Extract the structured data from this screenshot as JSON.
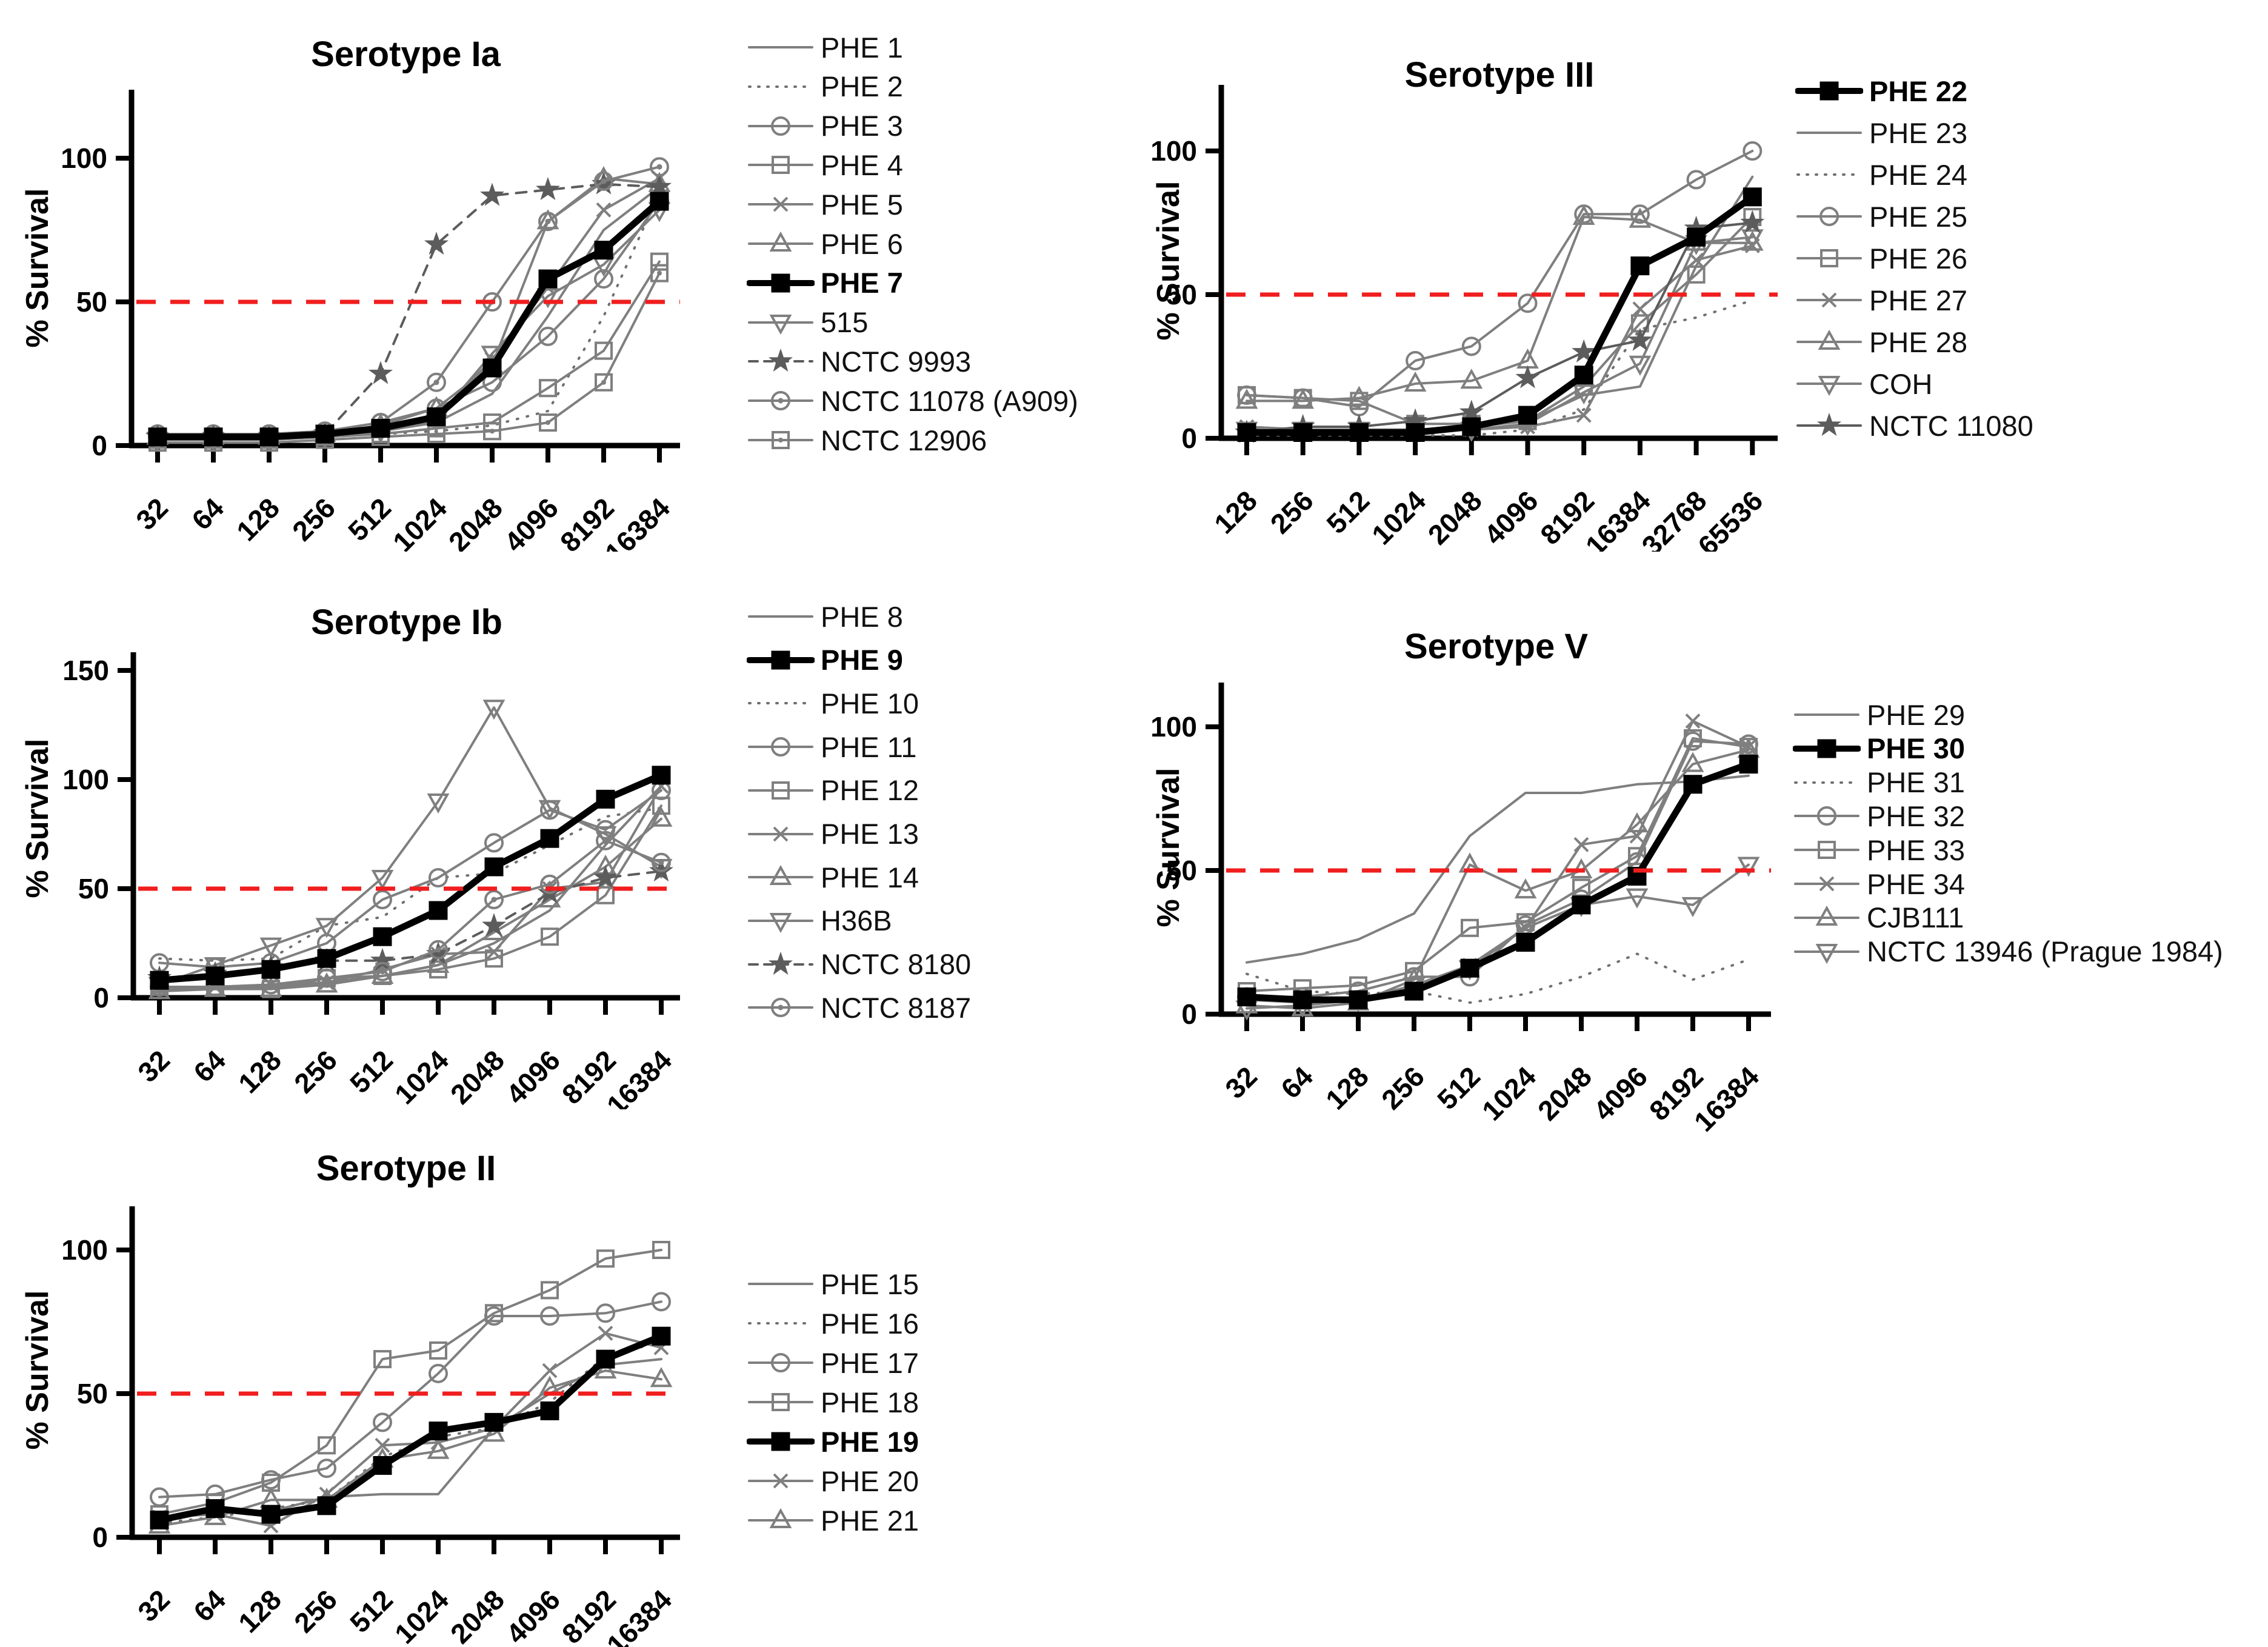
{
  "figure": {
    "background": "#ffffff",
    "threshold_label_note": "red dashed reference line at 50% survival on every panel",
    "colors": {
      "series_gray": "#7f7f7f",
      "dotted_gray": "#707070",
      "star_gray": "#5c5c5c",
      "bold_black": "#000000",
      "threshold_red": "#f01e1e"
    }
  },
  "chart_data": [
    {
      "type": "line",
      "title": "Serotype Ia",
      "ylabel": "% Survival",
      "xlabel": "",
      "categories": [
        "32",
        "64",
        "128",
        "256",
        "512",
        "1024",
        "2048",
        "4096",
        "8192",
        "16384"
      ],
      "yticks": [
        0,
        50,
        100
      ],
      "ylim": [
        0,
        125
      ],
      "threshold": 50,
      "grid": false,
      "legend_position": "right",
      "xtick_rotation": -45,
      "series": [
        {
          "label": "PHE 1",
          "marker": "none",
          "line": "solid",
          "bold": false,
          "values": [
            3,
            3,
            3,
            4,
            5,
            8,
            18,
            45,
            75,
            90
          ]
        },
        {
          "label": "PHE 2",
          "marker": "none",
          "line": "dotted",
          "bold": false,
          "values": [
            2,
            2,
            2,
            3,
            4,
            5,
            7,
            12,
            45,
            88
          ]
        },
        {
          "label": "PHE 3",
          "marker": "circle",
          "line": "solid",
          "bold": false,
          "values": [
            4,
            4,
            4,
            5,
            8,
            13,
            22,
            38,
            58,
            85
          ]
        },
        {
          "label": "PHE 4",
          "marker": "square",
          "line": "solid",
          "bold": false,
          "values": [
            2,
            2,
            2,
            3,
            4,
            6,
            8,
            20,
            33,
            64
          ]
        },
        {
          "label": "PHE 5",
          "marker": "x",
          "line": "solid",
          "bold": false,
          "values": [
            3,
            3,
            3,
            4,
            6,
            10,
            30,
            55,
            82,
            93
          ]
        },
        {
          "label": "PHE 6",
          "marker": "triangle-up",
          "line": "solid",
          "bold": false,
          "values": [
            3,
            3,
            3,
            4,
            7,
            13,
            28,
            78,
            93,
            91
          ]
        },
        {
          "label": "PHE 7",
          "marker": "filled-square",
          "line": "solid",
          "bold": true,
          "values": [
            3,
            3,
            3,
            4,
            6,
            10,
            27,
            58,
            68,
            85
          ]
        },
        {
          "label": "515",
          "marker": "triangle-down",
          "line": "solid",
          "bold": false,
          "values": [
            2,
            2,
            2,
            3,
            5,
            9,
            32,
            52,
            63,
            82
          ]
        },
        {
          "label": "NCTC 9993",
          "marker": "star",
          "line": "dashed",
          "bold": false,
          "values": [
            3,
            3,
            3,
            4,
            25,
            70,
            87,
            89,
            91,
            90
          ]
        },
        {
          "label": "NCTC 11078 (A909)",
          "marker": "circle-dot",
          "line": "solid",
          "bold": false,
          "values": [
            3,
            3,
            4,
            5,
            8,
            22,
            50,
            78,
            92,
            97
          ]
        },
        {
          "label": "NCTC 12906",
          "marker": "square-dot",
          "line": "solid",
          "bold": false,
          "values": [
            1,
            1,
            1,
            2,
            3,
            4,
            5,
            8,
            22,
            60
          ]
        }
      ]
    },
    {
      "type": "line",
      "title": "Serotype III",
      "ylabel": "% Survival",
      "xlabel": "",
      "categories": [
        "128",
        "256",
        "512",
        "1024",
        "2048",
        "4096",
        "8192",
        "16384",
        "32768",
        "65536"
      ],
      "yticks": [
        0,
        50,
        100
      ],
      "ylim": [
        0,
        123
      ],
      "threshold": 50,
      "grid": false,
      "legend_position": "right",
      "xtick_rotation": -45,
      "series": [
        {
          "label": "PHE 22",
          "marker": "filled-square",
          "line": "solid",
          "bold": true,
          "values": [
            2,
            2,
            2,
            2,
            4,
            8,
            22,
            60,
            70,
            84
          ]
        },
        {
          "label": "PHE 23",
          "marker": "none",
          "line": "solid",
          "bold": false,
          "values": [
            4,
            3,
            3,
            3,
            4,
            6,
            15,
            18,
            60,
            91
          ]
        },
        {
          "label": "PHE 24",
          "marker": "none",
          "line": "dotted",
          "bold": false,
          "values": [
            1,
            1,
            1,
            1,
            1,
            3,
            10,
            38,
            42,
            48
          ]
        },
        {
          "label": "PHE 25",
          "marker": "circle",
          "line": "solid",
          "bold": false,
          "values": [
            15,
            14,
            11,
            27,
            32,
            47,
            78,
            78,
            90,
            100
          ]
        },
        {
          "label": "PHE 26",
          "marker": "square",
          "line": "solid",
          "bold": false,
          "values": [
            15,
            14,
            13,
            5,
            5,
            6,
            18,
            40,
            57,
            77
          ]
        },
        {
          "label": "PHE 27",
          "marker": "x",
          "line": "solid",
          "bold": false,
          "values": [
            4,
            3,
            3,
            3,
            3,
            4,
            8,
            45,
            62,
            67
          ]
        },
        {
          "label": "PHE 28",
          "marker": "triangle-up",
          "line": "solid",
          "bold": false,
          "values": [
            13,
            13,
            14,
            19,
            20,
            27,
            77,
            76,
            68,
            68
          ]
        },
        {
          "label": "COH",
          "marker": "triangle-down",
          "line": "solid",
          "bold": false,
          "values": [
            3,
            3,
            3,
            3,
            3,
            5,
            16,
            26,
            68,
            70
          ]
        },
        {
          "label": "NCTC 11080",
          "marker": "star",
          "line": "solid",
          "bold": false,
          "values": [
            2,
            4,
            4,
            6,
            9,
            21,
            30,
            34,
            73,
            75
          ]
        }
      ]
    },
    {
      "type": "line",
      "title": "Serotype Ib",
      "ylabel": "% Survival",
      "xlabel": "",
      "categories": [
        "32",
        "64",
        "128",
        "256",
        "512",
        "1024",
        "2048",
        "4096",
        "8192",
        "16384"
      ],
      "yticks": [
        0,
        50,
        100,
        150
      ],
      "ylim": [
        0,
        158
      ],
      "threshold": 50,
      "grid": false,
      "legend_position": "right",
      "xtick_rotation": -45,
      "series": [
        {
          "label": "PHE 8",
          "marker": "none",
          "line": "solid",
          "bold": false,
          "values": [
            4,
            4,
            5,
            7,
            10,
            15,
            25,
            40,
            70,
            97
          ]
        },
        {
          "label": "PHE 9",
          "marker": "filled-square",
          "line": "solid",
          "bold": true,
          "values": [
            8,
            10,
            13,
            18,
            28,
            40,
            60,
            73,
            91,
            102
          ]
        },
        {
          "label": "PHE 10",
          "marker": "none",
          "line": "dotted",
          "bold": false,
          "values": [
            18,
            17,
            18,
            33,
            37,
            55,
            57,
            70,
            83,
            87
          ]
        },
        {
          "label": "PHE 11",
          "marker": "circle",
          "line": "solid",
          "bold": false,
          "values": [
            16,
            14,
            16,
            25,
            45,
            55,
            71,
            86,
            77,
            95
          ]
        },
        {
          "label": "PHE 12",
          "marker": "square",
          "line": "solid",
          "bold": false,
          "values": [
            5,
            5,
            4,
            9,
            10,
            13,
            18,
            28,
            47,
            88
          ]
        },
        {
          "label": "PHE 13",
          "marker": "x",
          "line": "solid",
          "bold": false,
          "values": [
            4,
            5,
            6,
            7,
            13,
            20,
            21,
            50,
            53,
            97
          ]
        },
        {
          "label": "PHE 14",
          "marker": "triangle-up",
          "line": "solid",
          "bold": false,
          "values": [
            3,
            4,
            4,
            6,
            10,
            15,
            30,
            45,
            60,
            82
          ]
        },
        {
          "label": "H36B",
          "marker": "triangle-down",
          "line": "solid",
          "bold": false,
          "values": [
            6,
            15,
            24,
            33,
            55,
            90,
            133,
            87,
            75,
            60
          ]
        },
        {
          "label": "NCTC 8180",
          "marker": "star",
          "line": "dashed",
          "bold": false,
          "values": [
            9,
            11,
            14,
            17,
            17,
            20,
            33,
            48,
            55,
            58
          ]
        },
        {
          "label": "NCTC 8187",
          "marker": "circle-dot",
          "line": "solid",
          "bold": false,
          "values": [
            5,
            5,
            6,
            9,
            12,
            22,
            45,
            52,
            72,
            62
          ]
        }
      ]
    },
    {
      "type": "line",
      "title": "Serotype V",
      "ylabel": "% Survival",
      "xlabel": "",
      "categories": [
        "32",
        "64",
        "128",
        "256",
        "512",
        "1024",
        "2048",
        "4096",
        "8192",
        "16384"
      ],
      "yticks": [
        0,
        50,
        100
      ],
      "ylim": [
        0,
        115
      ],
      "threshold": 50,
      "grid": false,
      "legend_position": "right",
      "xtick_rotation": -45,
      "series": [
        {
          "label": "PHE 29",
          "marker": "none",
          "line": "solid",
          "bold": false,
          "values": [
            18,
            21,
            26,
            35,
            62,
            77,
            77,
            80,
            81,
            83
          ]
        },
        {
          "label": "PHE 30",
          "marker": "filled-square",
          "line": "solid",
          "bold": true,
          "values": [
            6,
            5,
            5,
            8,
            16,
            25,
            38,
            48,
            80,
            87
          ]
        },
        {
          "label": "PHE 31",
          "marker": "none",
          "line": "dotted",
          "bold": false,
          "values": [
            14,
            8,
            7,
            8,
            4,
            7,
            13,
            21,
            12,
            19
          ]
        },
        {
          "label": "PHE 32",
          "marker": "circle",
          "line": "solid",
          "bold": false,
          "values": [
            6,
            6,
            8,
            13,
            13,
            31,
            40,
            53,
            95,
            94
          ]
        },
        {
          "label": "PHE 33",
          "marker": "square",
          "line": "solid",
          "bold": false,
          "values": [
            8,
            9,
            10,
            15,
            30,
            32,
            44,
            55,
            96,
            93
          ]
        },
        {
          "label": "PHE 34",
          "marker": "x",
          "line": "solid",
          "bold": false,
          "values": [
            5,
            4,
            5,
            10,
            17,
            30,
            59,
            62,
            102,
            93
          ]
        },
        {
          "label": "CJB111",
          "marker": "triangle-up",
          "line": "solid",
          "bold": false,
          "values": [
            3,
            2,
            4,
            12,
            52,
            43,
            50,
            66,
            87,
            92
          ]
        },
        {
          "label": "NCTC 13946 (Prague 1984)",
          "marker": "triangle-down",
          "line": "solid",
          "bold": false,
          "values": [
            2,
            3,
            5,
            10,
            16,
            30,
            38,
            41,
            38,
            52
          ]
        }
      ]
    },
    {
      "type": "line",
      "title": "Serotype II",
      "ylabel": "% Survival",
      "xlabel": "",
      "categories": [
        "32",
        "64",
        "128",
        "256",
        "512",
        "1024",
        "2048",
        "4096",
        "8192",
        "16384"
      ],
      "yticks": [
        0,
        50,
        100
      ],
      "ylim": [
        0,
        120
      ],
      "threshold": 50,
      "grid": false,
      "legend_position": "right",
      "xtick_rotation": -45,
      "series": [
        {
          "label": "PHE 15",
          "marker": "none",
          "line": "solid",
          "bold": false,
          "values": [
            7,
            9,
            9,
            14,
            15,
            15,
            38,
            50,
            60,
            62
          ]
        },
        {
          "label": "PHE 16",
          "marker": "none",
          "line": "dotted",
          "bold": false,
          "values": [
            5,
            7,
            10,
            13,
            28,
            35,
            38,
            47,
            63,
            68
          ]
        },
        {
          "label": "PHE 17",
          "marker": "circle",
          "line": "solid",
          "bold": false,
          "values": [
            14,
            15,
            20,
            24,
            40,
            57,
            77,
            77,
            78,
            82
          ]
        },
        {
          "label": "PHE 18",
          "marker": "square",
          "line": "solid",
          "bold": false,
          "values": [
            8,
            12,
            19,
            32,
            62,
            65,
            78,
            86,
            97,
            100
          ]
        },
        {
          "label": "PHE 19",
          "marker": "filled-square",
          "line": "solid",
          "bold": true,
          "values": [
            6,
            10,
            8,
            11,
            25,
            37,
            40,
            44,
            62,
            70
          ]
        },
        {
          "label": "PHE 20",
          "marker": "x",
          "line": "solid",
          "bold": false,
          "values": [
            7,
            8,
            4,
            15,
            32,
            33,
            38,
            58,
            71,
            66
          ]
        },
        {
          "label": "PHE 21",
          "marker": "triangle-up",
          "line": "solid",
          "bold": false,
          "values": [
            4,
            7,
            13,
            13,
            27,
            30,
            36,
            52,
            58,
            55
          ]
        }
      ]
    }
  ]
}
